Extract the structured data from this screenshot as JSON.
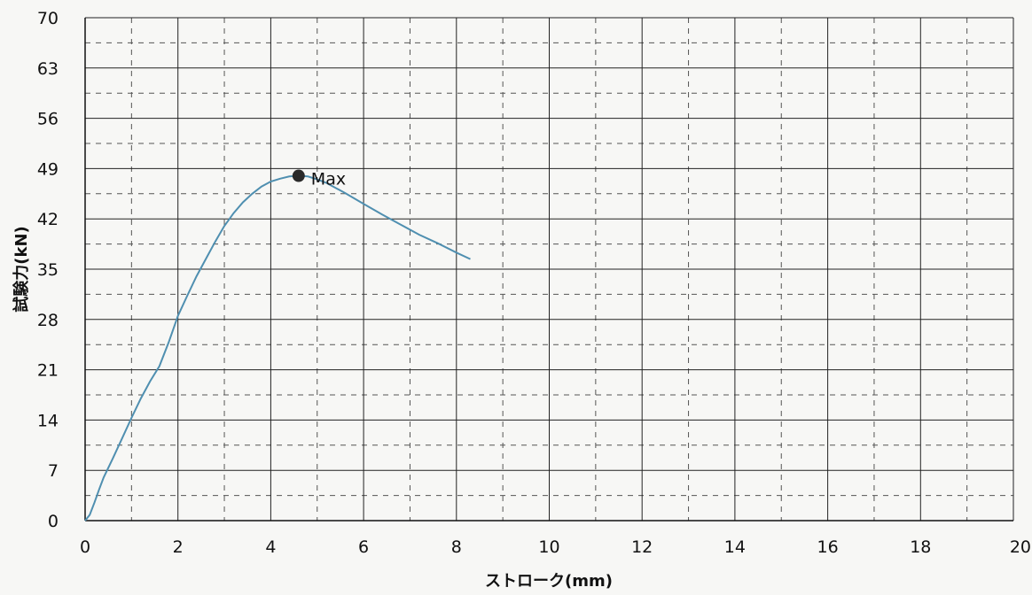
{
  "chart_data": {
    "type": "line",
    "title": "",
    "xlabel": "ストローク(mm)",
    "ylabel": "試験力(kN)",
    "xlim": [
      0,
      20
    ],
    "ylim": [
      0,
      70
    ],
    "x_ticks": [
      0,
      2,
      4,
      6,
      8,
      10,
      12,
      14,
      16,
      18,
      20
    ],
    "y_ticks": [
      0,
      7,
      14,
      21,
      28,
      35,
      42,
      49,
      56,
      63,
      70
    ],
    "grid": true,
    "minor_grid": "dashed",
    "line_color": "#4f8fb0",
    "series": [
      {
        "x": [
          0,
          0.1,
          0.2,
          0.3,
          0.4,
          0.6,
          0.8,
          1.0,
          1.2,
          1.4,
          1.6,
          1.8,
          2.0,
          2.2,
          2.4,
          2.6,
          2.8,
          3.0,
          3.2,
          3.4,
          3.6,
          3.8,
          4.0,
          4.2,
          4.4,
          4.6,
          4.8,
          5.0,
          5.2,
          5.6,
          6.0,
          6.4,
          6.8,
          7.2,
          7.6,
          8.0,
          8.3
        ],
        "y": [
          0,
          0.8,
          2.5,
          4.3,
          6.0,
          8.7,
          11.5,
          14.3,
          17.0,
          19.4,
          21.5,
          24.8,
          28.5,
          31.3,
          34.0,
          36.4,
          38.8,
          41.0,
          42.8,
          44.3,
          45.5,
          46.5,
          47.2,
          47.6,
          47.9,
          48.0,
          47.9,
          47.5,
          47.0,
          45.6,
          44.1,
          42.6,
          41.2,
          39.8,
          38.6,
          37.3,
          36.4
        ]
      }
    ],
    "annotations": [
      {
        "label": "Max",
        "x": 4.6,
        "y": 48.0
      }
    ]
  }
}
